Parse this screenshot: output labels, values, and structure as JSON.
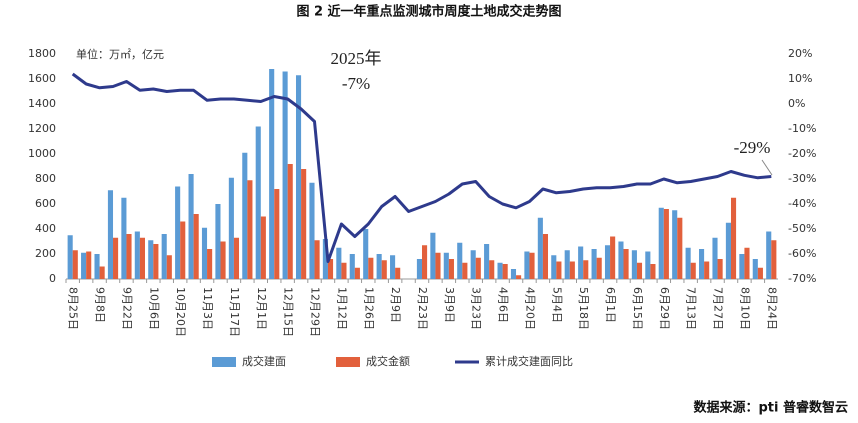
{
  "chart_data": {
    "type": "bar-line",
    "title": "图 2 近一年重点监测城市周度土地成交走势图",
    "unit_note": "单位：万㎡，亿元",
    "source": "数据来源：pti 普睿数智云",
    "annotations": [
      "2025年",
      "-7%",
      "-29%"
    ],
    "categories": [
      "8月25日",
      null,
      "9月8日",
      null,
      "9月22日",
      null,
      "10月6日",
      null,
      "10月20日",
      null,
      "11月3日",
      null,
      "11月17日",
      null,
      "12月1日",
      null,
      "12月15日",
      null,
      "12月29日",
      null,
      "1月12日",
      null,
      "1月26日",
      null,
      "2月9日",
      null,
      "2月23日",
      null,
      "3月9日",
      null,
      "3月23日",
      null,
      "4月6日",
      null,
      "4月20日",
      null,
      "5月4日",
      null,
      "5月18日",
      null,
      "6月1日",
      null,
      "6月15日",
      null,
      "6月29日",
      null,
      "7月13日",
      null,
      "7月27日",
      null,
      "8月10日",
      null,
      "8月24日"
    ],
    "series": [
      {
        "name": "成交建面",
        "color": "#5b9bd5",
        "type": "bar",
        "values": [
          350,
          210,
          200,
          710,
          650,
          380,
          310,
          360,
          740,
          840,
          410,
          600,
          810,
          1010,
          1220,
          1680,
          1660,
          1630,
          770,
          320,
          250,
          200,
          400,
          200,
          190,
          0,
          160,
          370,
          210,
          290,
          230,
          280,
          130,
          80,
          220,
          490,
          190,
          230,
          260,
          240,
          270,
          300,
          230,
          220,
          570,
          550,
          250,
          240,
          330,
          450,
          200,
          160,
          380
        ]
      },
      {
        "name": "成交金额",
        "color": "#e2603c",
        "type": "bar",
        "values": [
          230,
          220,
          100,
          330,
          360,
          330,
          280,
          190,
          460,
          520,
          240,
          300,
          330,
          790,
          500,
          720,
          920,
          880,
          310,
          160,
          130,
          90,
          170,
          150,
          90,
          0,
          270,
          210,
          160,
          130,
          170,
          150,
          120,
          30,
          210,
          360,
          140,
          140,
          150,
          170,
          340,
          240,
          130,
          120,
          560,
          490,
          130,
          140,
          160,
          650,
          250,
          90,
          310
        ]
      },
      {
        "name": "累计成交建面同比",
        "color": "#2e3a8c",
        "type": "line",
        "axis": "y2",
        "values": [
          12,
          8,
          6.5,
          7,
          9,
          5.5,
          6,
          5,
          5.5,
          5.5,
          1.5,
          2,
          2,
          1.5,
          1,
          3,
          2,
          -2,
          -7,
          -63,
          -48,
          -53,
          -48,
          -41,
          -37,
          -43,
          -41,
          -39,
          -36,
          -32,
          -31,
          -37,
          -40,
          -41.5,
          -39,
          -34,
          -35.5,
          -35,
          -34,
          -33.5,
          -33.5,
          -33,
          -32,
          -32,
          -30,
          -31.5,
          -31,
          -30,
          -29,
          -27,
          -28.5,
          -29.5,
          -29
        ]
      }
    ],
    "ylim": [
      0,
      1800
    ],
    "yticks": [
      0,
      200,
      400,
      600,
      800,
      1000,
      1200,
      1400,
      1600,
      1800
    ],
    "y2lim": [
      -70,
      20
    ],
    "y2ticks": [
      {
        "value": -70,
        "label": "-70%"
      },
      {
        "value": -60,
        "label": "-60%"
      },
      {
        "value": -50,
        "label": "-50%"
      },
      {
        "value": -40,
        "label": "-40%"
      },
      {
        "value": -30,
        "label": "-30%"
      },
      {
        "value": -20,
        "label": "-20%"
      },
      {
        "value": -10,
        "label": "-10%"
      },
      {
        "value": 0,
        "label": "0%"
      },
      {
        "value": 10,
        "label": "10%"
      },
      {
        "value": 20,
        "label": "20%"
      }
    ],
    "legend": "bottom"
  }
}
